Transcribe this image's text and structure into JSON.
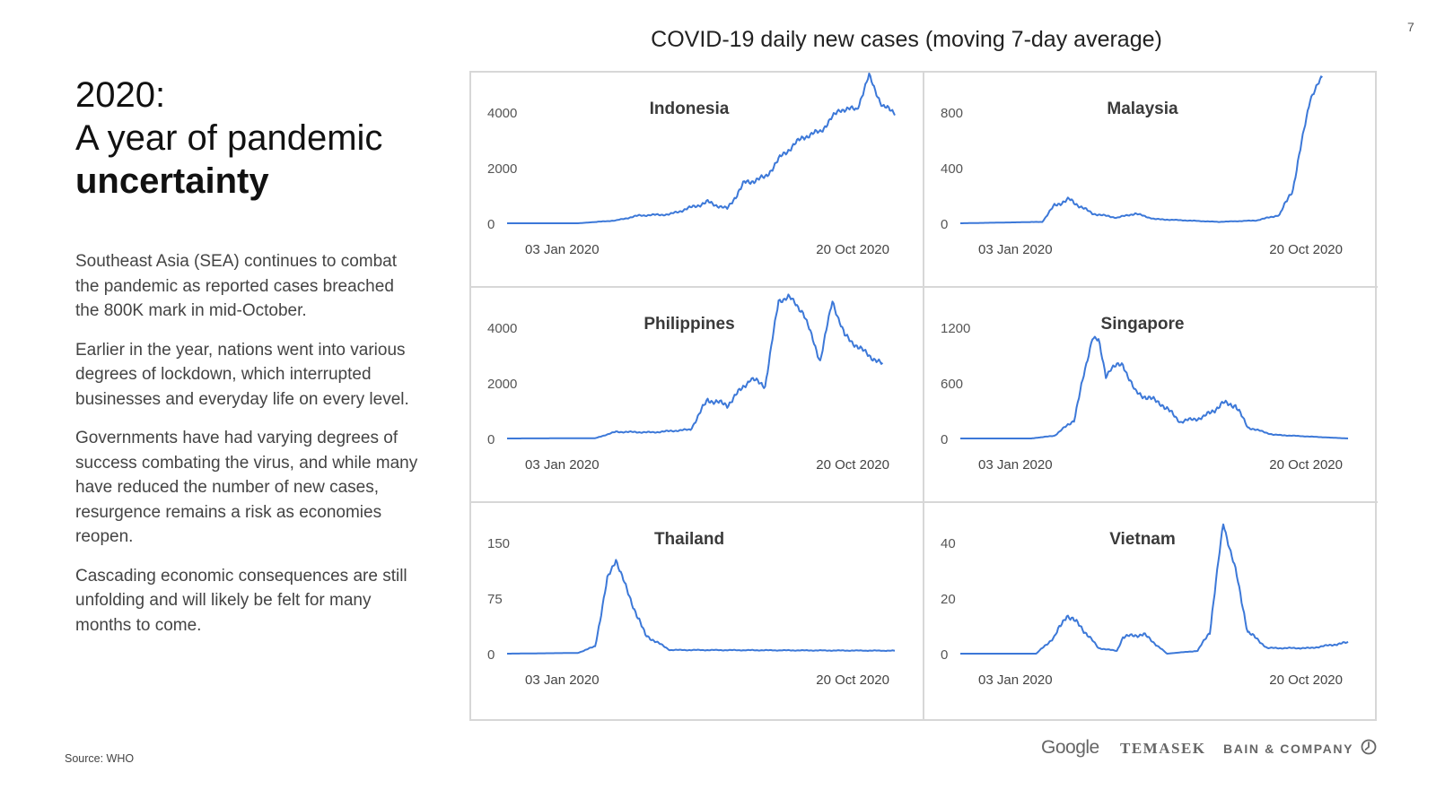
{
  "page_number": "7",
  "title": {
    "line1": "2020:",
    "line2": "A year of pandemic",
    "line3": "uncertainty"
  },
  "paragraphs": [
    "Southeast Asia (SEA) continues to combat the pandemic as reported cases breached the 800K mark in mid-October.",
    "Earlier in the year, nations went into various degrees of lockdown, which interrupted businesses and everyday life on every level.",
    "Governments have had varying degrees of success combating the virus, and while many have reduced the number of new cases, resurgence remains a risk as economies reopen.",
    "Cascading economic consequences are still unfolding and will likely be felt for many months to come."
  ],
  "source": "Source: WHO",
  "logos": {
    "google": "Google",
    "temasek": "TEMASEK",
    "bain": "BAIN & COMPANY",
    "bain_icon": "bain-clock-icon"
  },
  "line_color": "#3c78d8",
  "chart_data": {
    "type": "line",
    "title": "COVID-19 daily new cases (moving 7-day average)",
    "x_tick_labels": [
      "03 Jan 2020",
      "20 Oct 2020"
    ],
    "x_start": "2020-01-03",
    "x_end": "2020-11-15",
    "panels": [
      {
        "name": "Indonesia",
        "yticks": [
          0,
          2000,
          4000
        ],
        "ylim": [
          0,
          4000
        ],
        "points": [
          [
            "2020-01-03",
            0
          ],
          [
            "2020-03-01",
            0
          ],
          [
            "2020-04-01",
            100
          ],
          [
            "2020-04-20",
            280
          ],
          [
            "2020-05-15",
            320
          ],
          [
            "2020-06-15",
            760
          ],
          [
            "2020-07-01",
            520
          ],
          [
            "2020-07-15",
            1450
          ],
          [
            "2020-08-01",
            1650
          ],
          [
            "2020-08-15",
            2450
          ],
          [
            "2020-09-01",
            3100
          ],
          [
            "2020-09-15",
            3300
          ],
          [
            "2020-10-01",
            4100
          ],
          [
            "2020-10-15",
            4100
          ],
          [
            "2020-10-25",
            5300
          ],
          [
            "2020-11-05",
            4200
          ],
          [
            "2020-11-15",
            4000
          ]
        ]
      },
      {
        "name": "Malaysia",
        "yticks": [
          0,
          400,
          800
        ],
        "ylim": [
          0,
          800
        ],
        "points": [
          [
            "2020-01-03",
            0
          ],
          [
            "2020-03-10",
            10
          ],
          [
            "2020-03-20",
            130
          ],
          [
            "2020-04-01",
            170
          ],
          [
            "2020-04-20",
            70
          ],
          [
            "2020-05-10",
            40
          ],
          [
            "2020-05-25",
            70
          ],
          [
            "2020-06-10",
            30
          ],
          [
            "2020-08-01",
            10
          ],
          [
            "2020-09-01",
            20
          ],
          [
            "2020-09-20",
            60
          ],
          [
            "2020-10-01",
            250
          ],
          [
            "2020-10-15",
            900
          ],
          [
            "2020-10-25",
            1050
          ]
        ]
      },
      {
        "name": "Philippines",
        "yticks": [
          0,
          2000,
          4000
        ],
        "ylim": [
          0,
          4000
        ],
        "points": [
          [
            "2020-01-03",
            0
          ],
          [
            "2020-03-15",
            10
          ],
          [
            "2020-04-01",
            240
          ],
          [
            "2020-05-01",
            220
          ],
          [
            "2020-06-01",
            320
          ],
          [
            "2020-06-15",
            1400
          ],
          [
            "2020-07-01",
            1200
          ],
          [
            "2020-07-20",
            2150
          ],
          [
            "2020-08-01",
            1900
          ],
          [
            "2020-08-12",
            4950
          ],
          [
            "2020-08-20",
            5100
          ],
          [
            "2020-09-01",
            4550
          ],
          [
            "2020-09-15",
            2800
          ],
          [
            "2020-09-25",
            4950
          ],
          [
            "2020-10-05",
            3700
          ],
          [
            "2020-10-20",
            3150
          ],
          [
            "2020-11-05",
            2650
          ]
        ]
      },
      {
        "name": "Singapore",
        "yticks": [
          0,
          600,
          1200
        ],
        "ylim": [
          0,
          1200
        ],
        "points": [
          [
            "2020-01-03",
            0
          ],
          [
            "2020-03-01",
            0
          ],
          [
            "2020-03-20",
            30
          ],
          [
            "2020-04-05",
            200
          ],
          [
            "2020-04-20",
            1100
          ],
          [
            "2020-04-25",
            1050
          ],
          [
            "2020-05-01",
            680
          ],
          [
            "2020-05-05",
            760
          ],
          [
            "2020-05-15",
            800
          ],
          [
            "2020-05-25",
            500
          ],
          [
            "2020-06-15",
            380
          ],
          [
            "2020-07-01",
            180
          ],
          [
            "2020-07-20",
            230
          ],
          [
            "2020-08-05",
            380
          ],
          [
            "2020-08-15",
            360
          ],
          [
            "2020-08-25",
            120
          ],
          [
            "2020-09-15",
            40
          ],
          [
            "2020-10-15",
            20
          ],
          [
            "2020-11-15",
            0
          ]
        ]
      },
      {
        "name": "Thailand",
        "yticks": [
          0,
          75,
          150
        ],
        "ylim": [
          0,
          150
        ],
        "points": [
          [
            "2020-01-03",
            0
          ],
          [
            "2020-03-01",
            1
          ],
          [
            "2020-03-15",
            10
          ],
          [
            "2020-03-25",
            100
          ],
          [
            "2020-04-01",
            128
          ],
          [
            "2020-04-10",
            85
          ],
          [
            "2020-04-25",
            25
          ],
          [
            "2020-05-15",
            5
          ],
          [
            "2020-11-15",
            4
          ]
        ]
      },
      {
        "name": "Vietnam",
        "yticks": [
          0,
          20,
          40
        ],
        "ylim": [
          0,
          40
        ],
        "points": [
          [
            "2020-01-03",
            0
          ],
          [
            "2020-03-05",
            0
          ],
          [
            "2020-03-20",
            6
          ],
          [
            "2020-03-30",
            14
          ],
          [
            "2020-04-10",
            10
          ],
          [
            "2020-04-25",
            2
          ],
          [
            "2020-05-10",
            1
          ],
          [
            "2020-05-15",
            6
          ],
          [
            "2020-06-01",
            7
          ],
          [
            "2020-06-20",
            0
          ],
          [
            "2020-07-15",
            1
          ],
          [
            "2020-07-25",
            8
          ],
          [
            "2020-08-05",
            47
          ],
          [
            "2020-08-15",
            30
          ],
          [
            "2020-08-25",
            8
          ],
          [
            "2020-09-10",
            2
          ],
          [
            "2020-10-15",
            2
          ],
          [
            "2020-11-15",
            4
          ]
        ]
      }
    ]
  }
}
